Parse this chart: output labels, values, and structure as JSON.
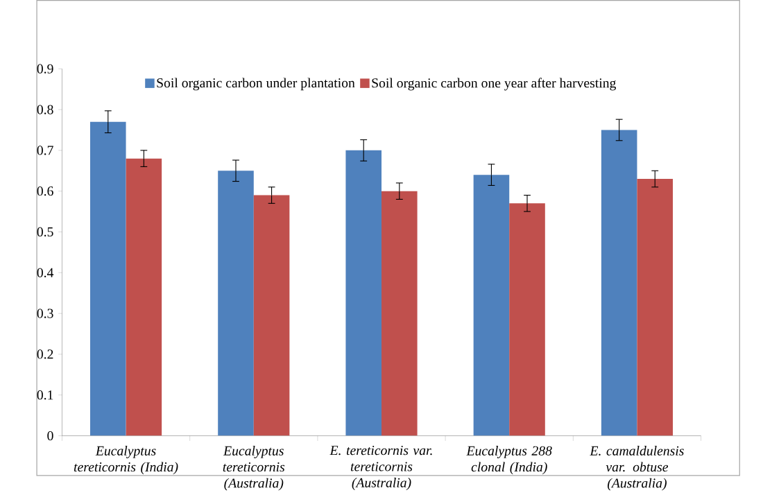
{
  "chart_data": {
    "type": "bar",
    "categories": [
      "Eucalyptus tereticornis (India)",
      "Eucalyptus tereticornis (Australia)",
      "E. tereticornis var. tereticornis (Australia)",
      "Eucalyptus 288 clonal (India)",
      "E. camaldulensis var. obtuse (Australia)"
    ],
    "series": [
      {
        "name": "Soil organic carbon under plantation",
        "color": "#4f81bd",
        "values": [
          0.77,
          0.65,
          0.7,
          0.64,
          0.75
        ],
        "errors": [
          0.027,
          0.026,
          0.026,
          0.026,
          0.026
        ]
      },
      {
        "name": "Soil organic carbon one year after harvesting",
        "color": "#c0504d",
        "values": [
          0.68,
          0.59,
          0.6,
          0.57,
          0.63
        ],
        "errors": [
          0.02,
          0.02,
          0.02,
          0.02,
          0.02
        ]
      }
    ],
    "ylim": [
      0,
      0.9
    ],
    "yticks": [
      0,
      0.1,
      0.2,
      0.3,
      0.4,
      0.5,
      0.6,
      0.7,
      0.8,
      0.9
    ],
    "legend": "top"
  }
}
